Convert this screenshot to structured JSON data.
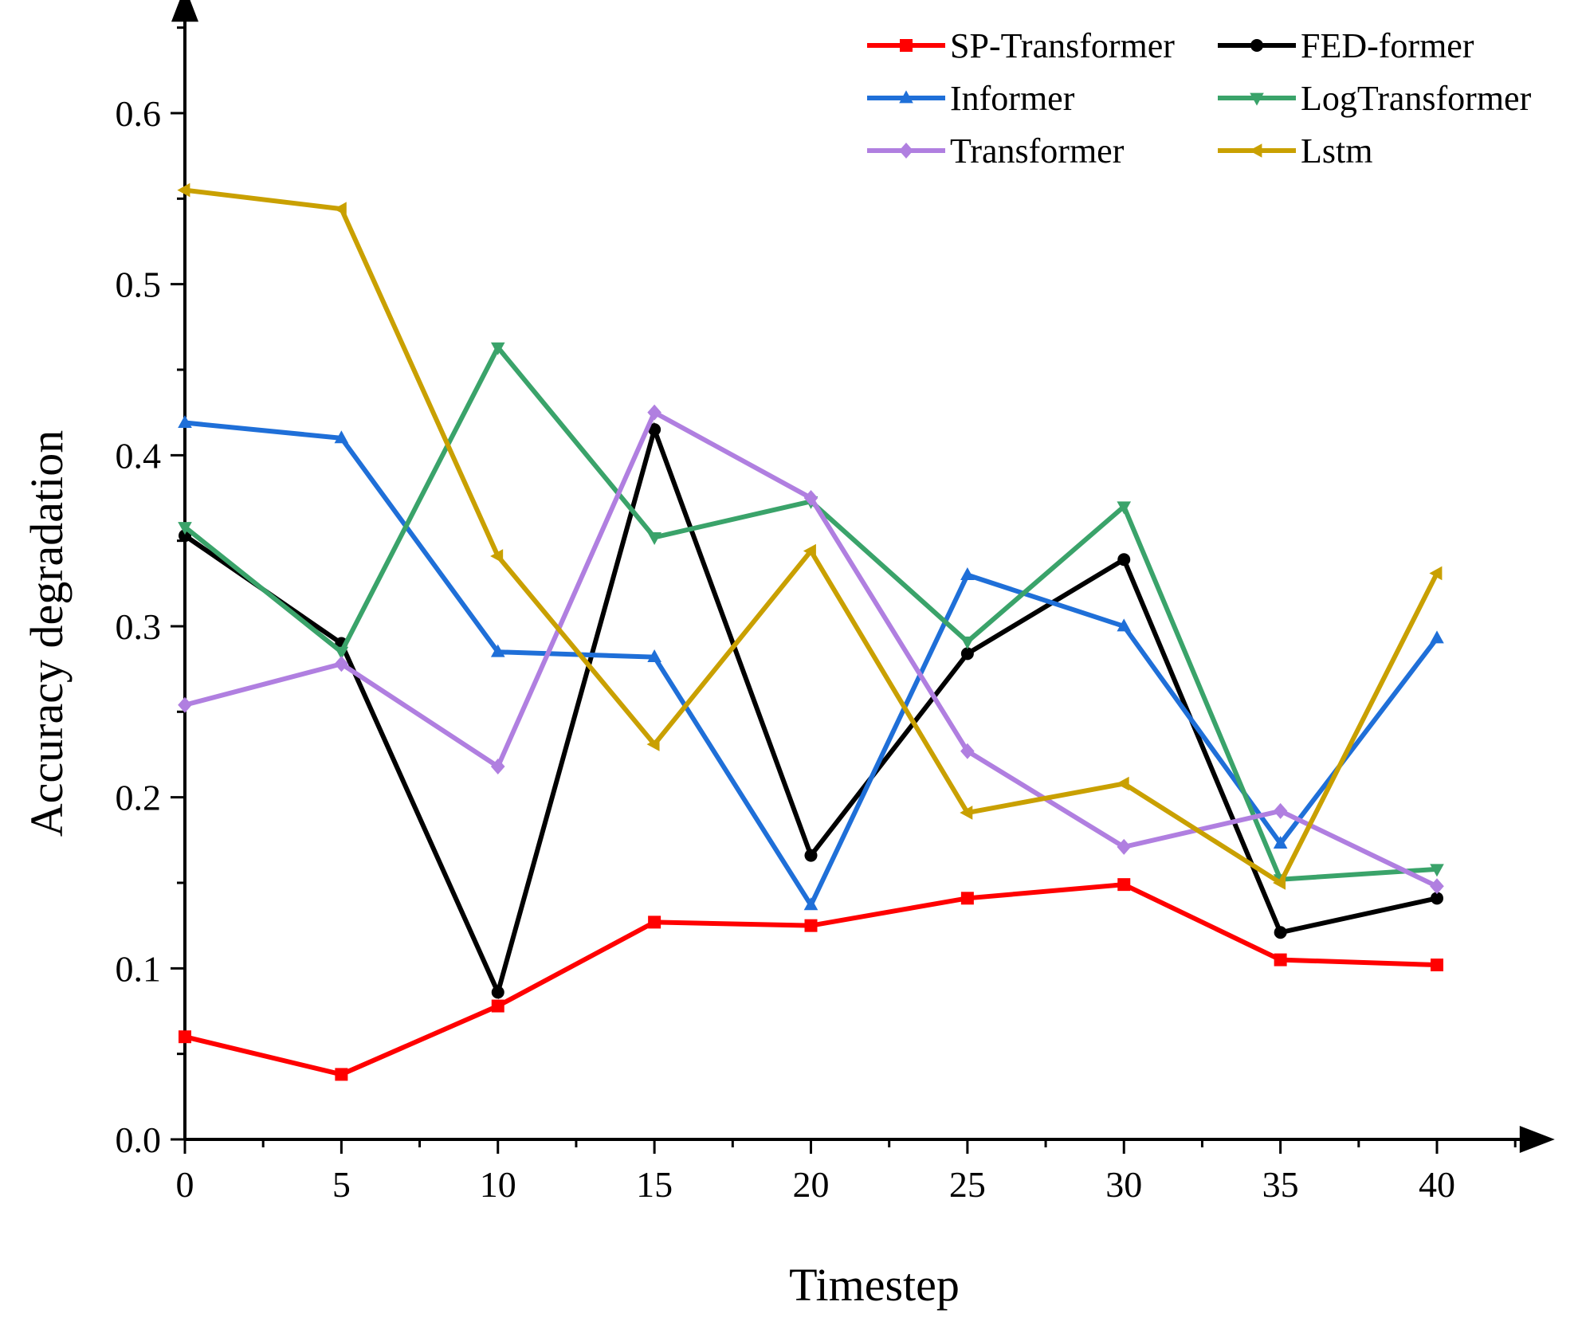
{
  "chart_data": {
    "type": "line",
    "title": "",
    "xlabel": "Timestep",
    "ylabel": "Accuracy degradation",
    "x": [
      0,
      5,
      10,
      15,
      20,
      25,
      30,
      35,
      40
    ],
    "x_ticks": [
      "0",
      "5",
      "10",
      "15",
      "20",
      "25",
      "30",
      "35",
      "40"
    ],
    "y_ticks": [
      "0.0",
      "0.1",
      "0.2",
      "0.3",
      "0.4",
      "0.5",
      "0.6"
    ],
    "xlim": [
      0,
      43
    ],
    "ylim": [
      0,
      0.66
    ],
    "grid": false,
    "legend_position": "top-right",
    "series": [
      {
        "name": "SP-Transformer",
        "color": "#ff0000",
        "marker": "square",
        "values": [
          0.06,
          0.038,
          0.078,
          0.127,
          0.125,
          0.141,
          0.149,
          0.105,
          0.102
        ]
      },
      {
        "name": "FED-former",
        "color": "#000000",
        "marker": "circle",
        "values": [
          0.353,
          0.29,
          0.086,
          0.415,
          0.166,
          0.284,
          0.339,
          0.121,
          0.141
        ]
      },
      {
        "name": "Informer",
        "color": "#1f6fd8",
        "marker": "triangle-up",
        "values": [
          0.419,
          0.41,
          0.285,
          0.282,
          0.137,
          0.33,
          0.3,
          0.173,
          0.293
        ]
      },
      {
        "name": "LogTransformer",
        "color": "#3aa36a",
        "marker": "triangle-down",
        "values": [
          0.358,
          0.285,
          0.463,
          0.352,
          0.373,
          0.291,
          0.37,
          0.152,
          0.158
        ]
      },
      {
        "name": "Transformer",
        "color": "#b07fe0",
        "marker": "diamond",
        "values": [
          0.254,
          0.278,
          0.218,
          0.425,
          0.375,
          0.227,
          0.171,
          0.192,
          0.148
        ]
      },
      {
        "name": "Lstm",
        "color": "#c9a000",
        "marker": "triangle-left",
        "values": [
          0.555,
          0.544,
          0.341,
          0.231,
          0.344,
          0.191,
          0.208,
          0.15,
          0.331
        ]
      }
    ]
  }
}
